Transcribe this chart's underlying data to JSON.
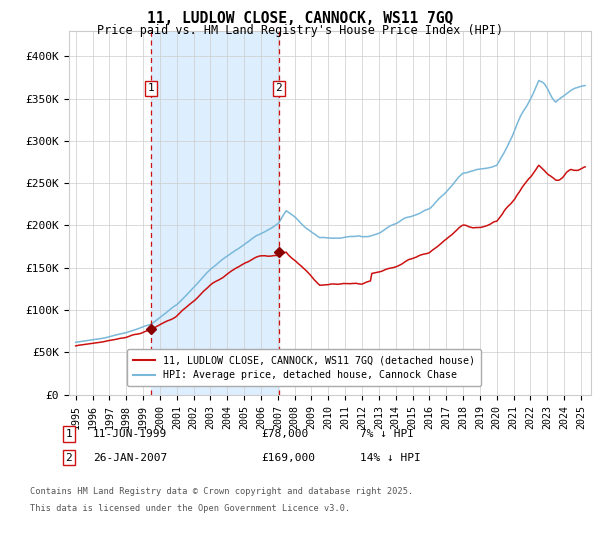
{
  "title": "11, LUDLOW CLOSE, CANNOCK, WS11 7GQ",
  "subtitle": "Price paid vs. HM Land Registry's House Price Index (HPI)",
  "legend_entries": [
    "11, LUDLOW CLOSE, CANNOCK, WS11 7GQ (detached house)",
    "HPI: Average price, detached house, Cannock Chase"
  ],
  "ann1_date": "11-JUN-1999",
  "ann1_price": "£78,000",
  "ann1_note": "7% ↓ HPI",
  "ann2_date": "26-JAN-2007",
  "ann2_price": "£169,000",
  "ann2_note": "14% ↓ HPI",
  "footnote1": "Contains HM Land Registry data © Crown copyright and database right 2025.",
  "footnote2": "This data is licensed under the Open Government Licence v3.0.",
  "ylim": [
    0,
    420000
  ],
  "yticks": [
    0,
    50000,
    100000,
    150000,
    200000,
    250000,
    300000,
    350000,
    400000
  ],
  "ytick_labels": [
    "£0",
    "£50K",
    "£100K",
    "£150K",
    "£200K",
    "£250K",
    "£300K",
    "£350K",
    "£400K"
  ],
  "hpi_color": "#7ab8d9",
  "price_color": "#cc1111",
  "vline_color": "#cc1111",
  "shade_color": "#ddeeff",
  "point_color": "#880000",
  "sale1_year": 1999.45,
  "sale2_year": 2007.07,
  "sale1_price": 78000,
  "sale2_price": 169000,
  "background_color": "#ffffff",
  "grid_color": "#cccccc"
}
